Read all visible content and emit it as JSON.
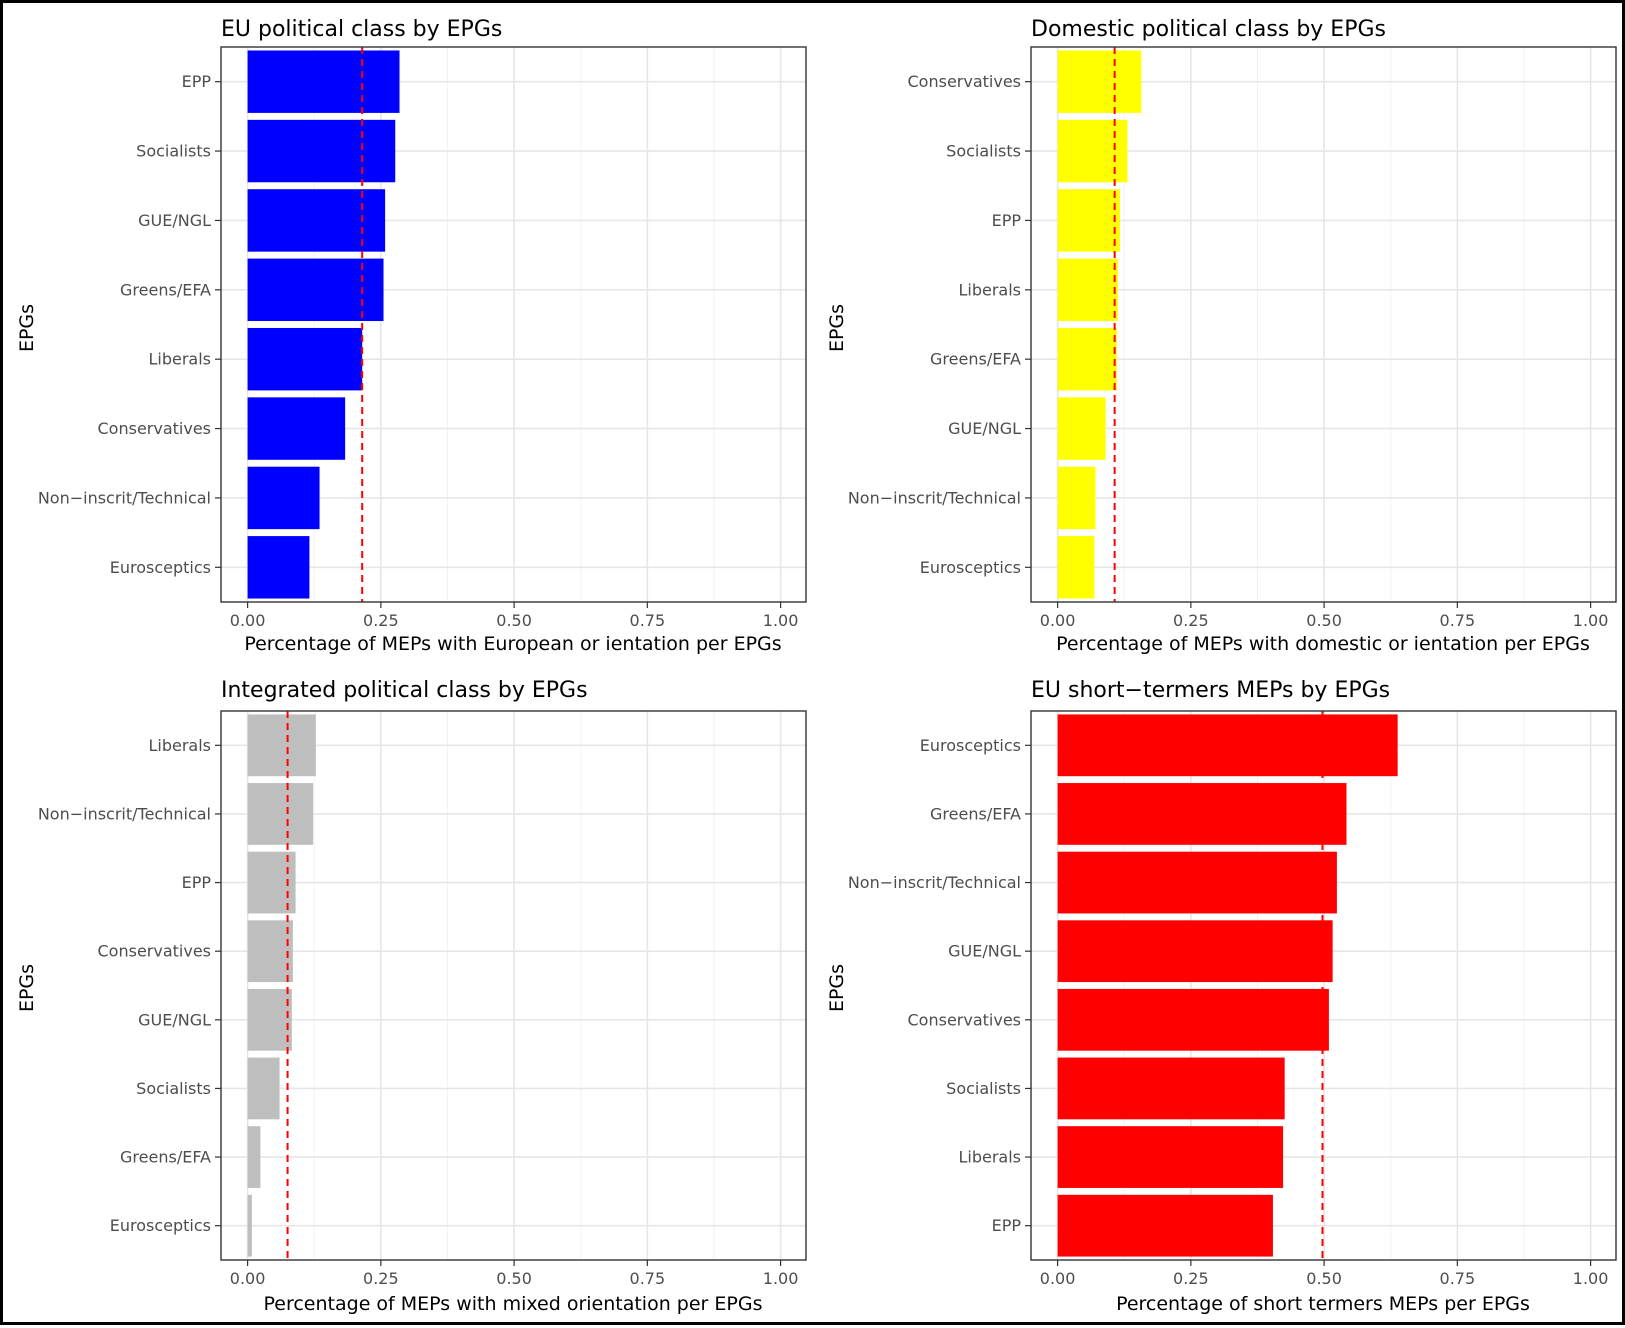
{
  "chart_data": [
    {
      "type": "bar",
      "orientation": "horizontal",
      "title": "EU political class by EPGs",
      "xlabel": "Percentage of MEPs with European or ientation per EPGs",
      "ylabel": "EPGs",
      "xlim": [
        0,
        1.0
      ],
      "xticks": [
        "0.00",
        "0.25",
        "0.50",
        "0.75",
        "1.00"
      ],
      "bar_color": "#0000ff",
      "reference_line": {
        "value": 0.215,
        "color": "#ff0000",
        "style": "dashed"
      },
      "grid": true,
      "categories": [
        "EPP",
        "Socialists",
        "GUE/NGL",
        "Greens/EFA",
        "Liberals",
        "Conservatives",
        "Non−inscrit/Technical",
        "Eurosceptics"
      ],
      "values": [
        0.285,
        0.277,
        0.258,
        0.255,
        0.215,
        0.183,
        0.135,
        0.116
      ]
    },
    {
      "type": "bar",
      "orientation": "horizontal",
      "title": "Domestic political class by EPGs",
      "xlabel": "Percentage of MEPs with domestic or ientation per EPGs",
      "ylabel": "EPGs",
      "xlim": [
        0,
        1.0
      ],
      "xticks": [
        "0.00",
        "0.25",
        "0.50",
        "0.75",
        "1.00"
      ],
      "bar_color": "#ffff00",
      "reference_line": {
        "value": 0.107,
        "color": "#ff0000",
        "style": "dashed"
      },
      "grid": true,
      "categories": [
        "Conservatives",
        "Socialists",
        "EPP",
        "Liberals",
        "Greens/EFA",
        "GUE/NGL",
        "Non−inscrit/Technical",
        "Eurosceptics"
      ],
      "values": [
        0.157,
        0.131,
        0.117,
        0.113,
        0.111,
        0.09,
        0.071,
        0.069
      ]
    },
    {
      "type": "bar",
      "orientation": "horizontal",
      "title": "Integrated political class by EPGs",
      "xlabel": "Percentage of MEPs with mixed orientation per EPGs",
      "ylabel": "EPGs",
      "xlim": [
        0,
        1.0
      ],
      "xticks": [
        "0.00",
        "0.25",
        "0.50",
        "0.75",
        "1.00"
      ],
      "bar_color": "#bebebe",
      "reference_line": {
        "value": 0.075,
        "color": "#ff0000",
        "style": "dashed"
      },
      "grid": true,
      "categories": [
        "Liberals",
        "Non−inscrit/Technical",
        "EPP",
        "Conservatives",
        "GUE/NGL",
        "Socialists",
        "Greens/EFA",
        "Eurosceptics"
      ],
      "values": [
        0.128,
        0.123,
        0.09,
        0.085,
        0.083,
        0.06,
        0.024,
        0.008
      ]
    },
    {
      "type": "bar",
      "orientation": "horizontal",
      "title": "EU short−termers MEPs by EPGs",
      "xlabel": "Percentage of short termers MEPs per EPGs",
      "ylabel": "EPGs",
      "xlim": [
        0,
        1.0
      ],
      "xticks": [
        "0.00",
        "0.25",
        "0.50",
        "0.75",
        "1.00"
      ],
      "bar_color": "#ff0000",
      "reference_line": {
        "value": 0.497,
        "color": "#ff0000",
        "style": "dashed"
      },
      "grid": true,
      "categories": [
        "Eurosceptics",
        "Greens/EFA",
        "Non−inscrit/Technical",
        "GUE/NGL",
        "Conservatives",
        "Socialists",
        "Liberals",
        "EPP"
      ],
      "values": [
        0.638,
        0.542,
        0.524,
        0.516,
        0.509,
        0.426,
        0.423,
        0.404
      ]
    }
  ]
}
